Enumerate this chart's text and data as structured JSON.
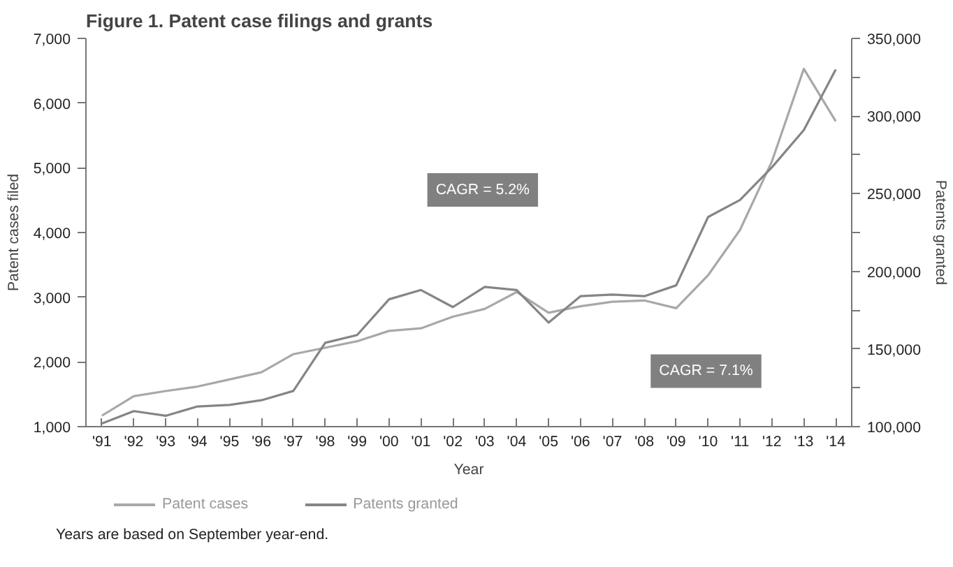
{
  "chart_data": {
    "type": "line",
    "title": "Figure 1. Patent case filings and grants",
    "xlabel": "Year",
    "ylabel": "Patent cases filed",
    "y2label": "Patents granted",
    "categories": [
      "'91",
      "'92",
      "'93",
      "'94",
      "'95",
      "'96",
      "'97",
      "'98",
      "'99",
      "'00",
      "'01",
      "'02",
      "'03",
      "'04",
      "'05",
      "'06",
      "'07",
      "'08",
      "'09",
      "'10",
      "'11",
      "'12",
      "'13",
      "'14"
    ],
    "series": [
      {
        "name": "Patent cases",
        "color": "#a8a8a8",
        "values": [
          1170,
          1470,
          1550,
          1620,
          1730,
          1840,
          2120,
          2220,
          2320,
          2480,
          2520,
          2700,
          2820,
          3080,
          2760,
          2860,
          2930,
          2950,
          2830,
          3340,
          4040,
          5100,
          6530,
          5720
        ]
      },
      {
        "name": "Patents granted",
        "color": "#858585",
        "axis": "y2",
        "values": [
          102000,
          110000,
          107000,
          113000,
          114000,
          117000,
          123000,
          154000,
          159000,
          182000,
          188000,
          177000,
          190000,
          188000,
          167000,
          184000,
          185000,
          184000,
          191000,
          235000,
          246000,
          267000,
          291000,
          330000
        ]
      }
    ],
    "ylim": [
      1000,
      7000
    ],
    "yticks": [
      {
        "value": 1000,
        "label": "1,000"
      },
      {
        "value": 2000,
        "label": "2,000"
      },
      {
        "value": 3000,
        "label": "3,000"
      },
      {
        "value": 4000,
        "label": "4,000"
      },
      {
        "value": 5000,
        "label": "5,000"
      },
      {
        "value": 6000,
        "label": "6,000"
      },
      {
        "value": 7000,
        "label": "7,000"
      }
    ],
    "y2lim": [
      100000,
      350000
    ],
    "y2ticks": [
      {
        "value": 100000,
        "label": "100,000"
      },
      {
        "value": 125000,
        "label": null
      },
      {
        "value": 150000,
        "label": "150,000"
      },
      {
        "value": 175000,
        "label": null
      },
      {
        "value": 200000,
        "label": "200,000"
      },
      {
        "value": 225000,
        "label": null
      },
      {
        "value": 250000,
        "label": "250,000"
      },
      {
        "value": 275000,
        "label": null
      },
      {
        "value": 300000,
        "label": "300,000"
      },
      {
        "value": 325000,
        "label": null
      },
      {
        "value": 350000,
        "label": "350,000"
      }
    ],
    "grid": false,
    "legend": "bottom",
    "annotations": [
      "CAGR = 5.2%",
      "CAGR = 7.1%",
      "Years are based on September year-end."
    ]
  }
}
